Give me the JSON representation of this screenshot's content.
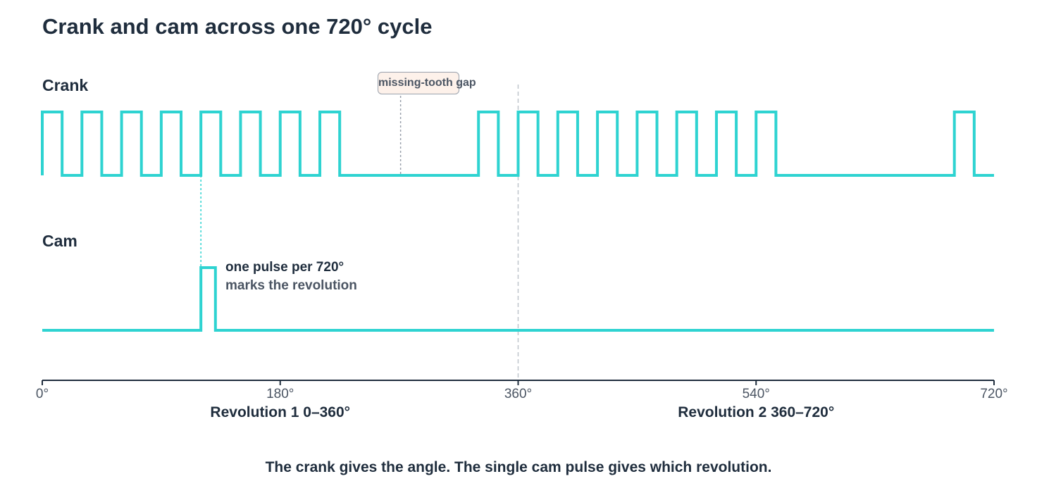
{
  "title": "Crank and cam across one 720° cycle",
  "tracks": {
    "crank_label": "Crank",
    "cam_label": "Cam"
  },
  "callouts": {
    "missing_tooth": "missing-tooth gap",
    "cam_note_line1": "one pulse per 720°",
    "cam_note_line2": "marks the revolution"
  },
  "axis": {
    "min_deg": 0,
    "max_deg": 720,
    "ticks": [
      "0°",
      "180°",
      "360°",
      "540°",
      "720°"
    ],
    "tick_values": [
      0,
      180,
      360,
      540,
      720
    ],
    "revolutions": [
      {
        "label": "Revolution 1 0–360°",
        "center_deg": 180
      },
      {
        "label": "Revolution 2 360–720°",
        "center_deg": 540
      }
    ]
  },
  "caption": "The crank gives the angle. The single cam pulse gives which revolution.",
  "colors": {
    "signal": "#2ed3d1",
    "text_dark": "#1f2d3d",
    "text_muted": "#4b5563",
    "guide": "#bfc5cc",
    "callout_fill": "#fdf1ea",
    "callout_border": "#9aa1ac"
  },
  "signals": {
    "crank_tooth_period_deg": 30,
    "crank_tooth_high_deg": 15,
    "crank_teeth_starts_deg": [
      0,
      30,
      60,
      90,
      120,
      150,
      180,
      210,
      330,
      360,
      390,
      420,
      450,
      480,
      510,
      540,
      690
    ],
    "missing_tooth_gap_deg": [
      240,
      330
    ],
    "cam_pulse_deg": [
      120,
      131
    ],
    "revolution_boundary_deg": 360
  }
}
